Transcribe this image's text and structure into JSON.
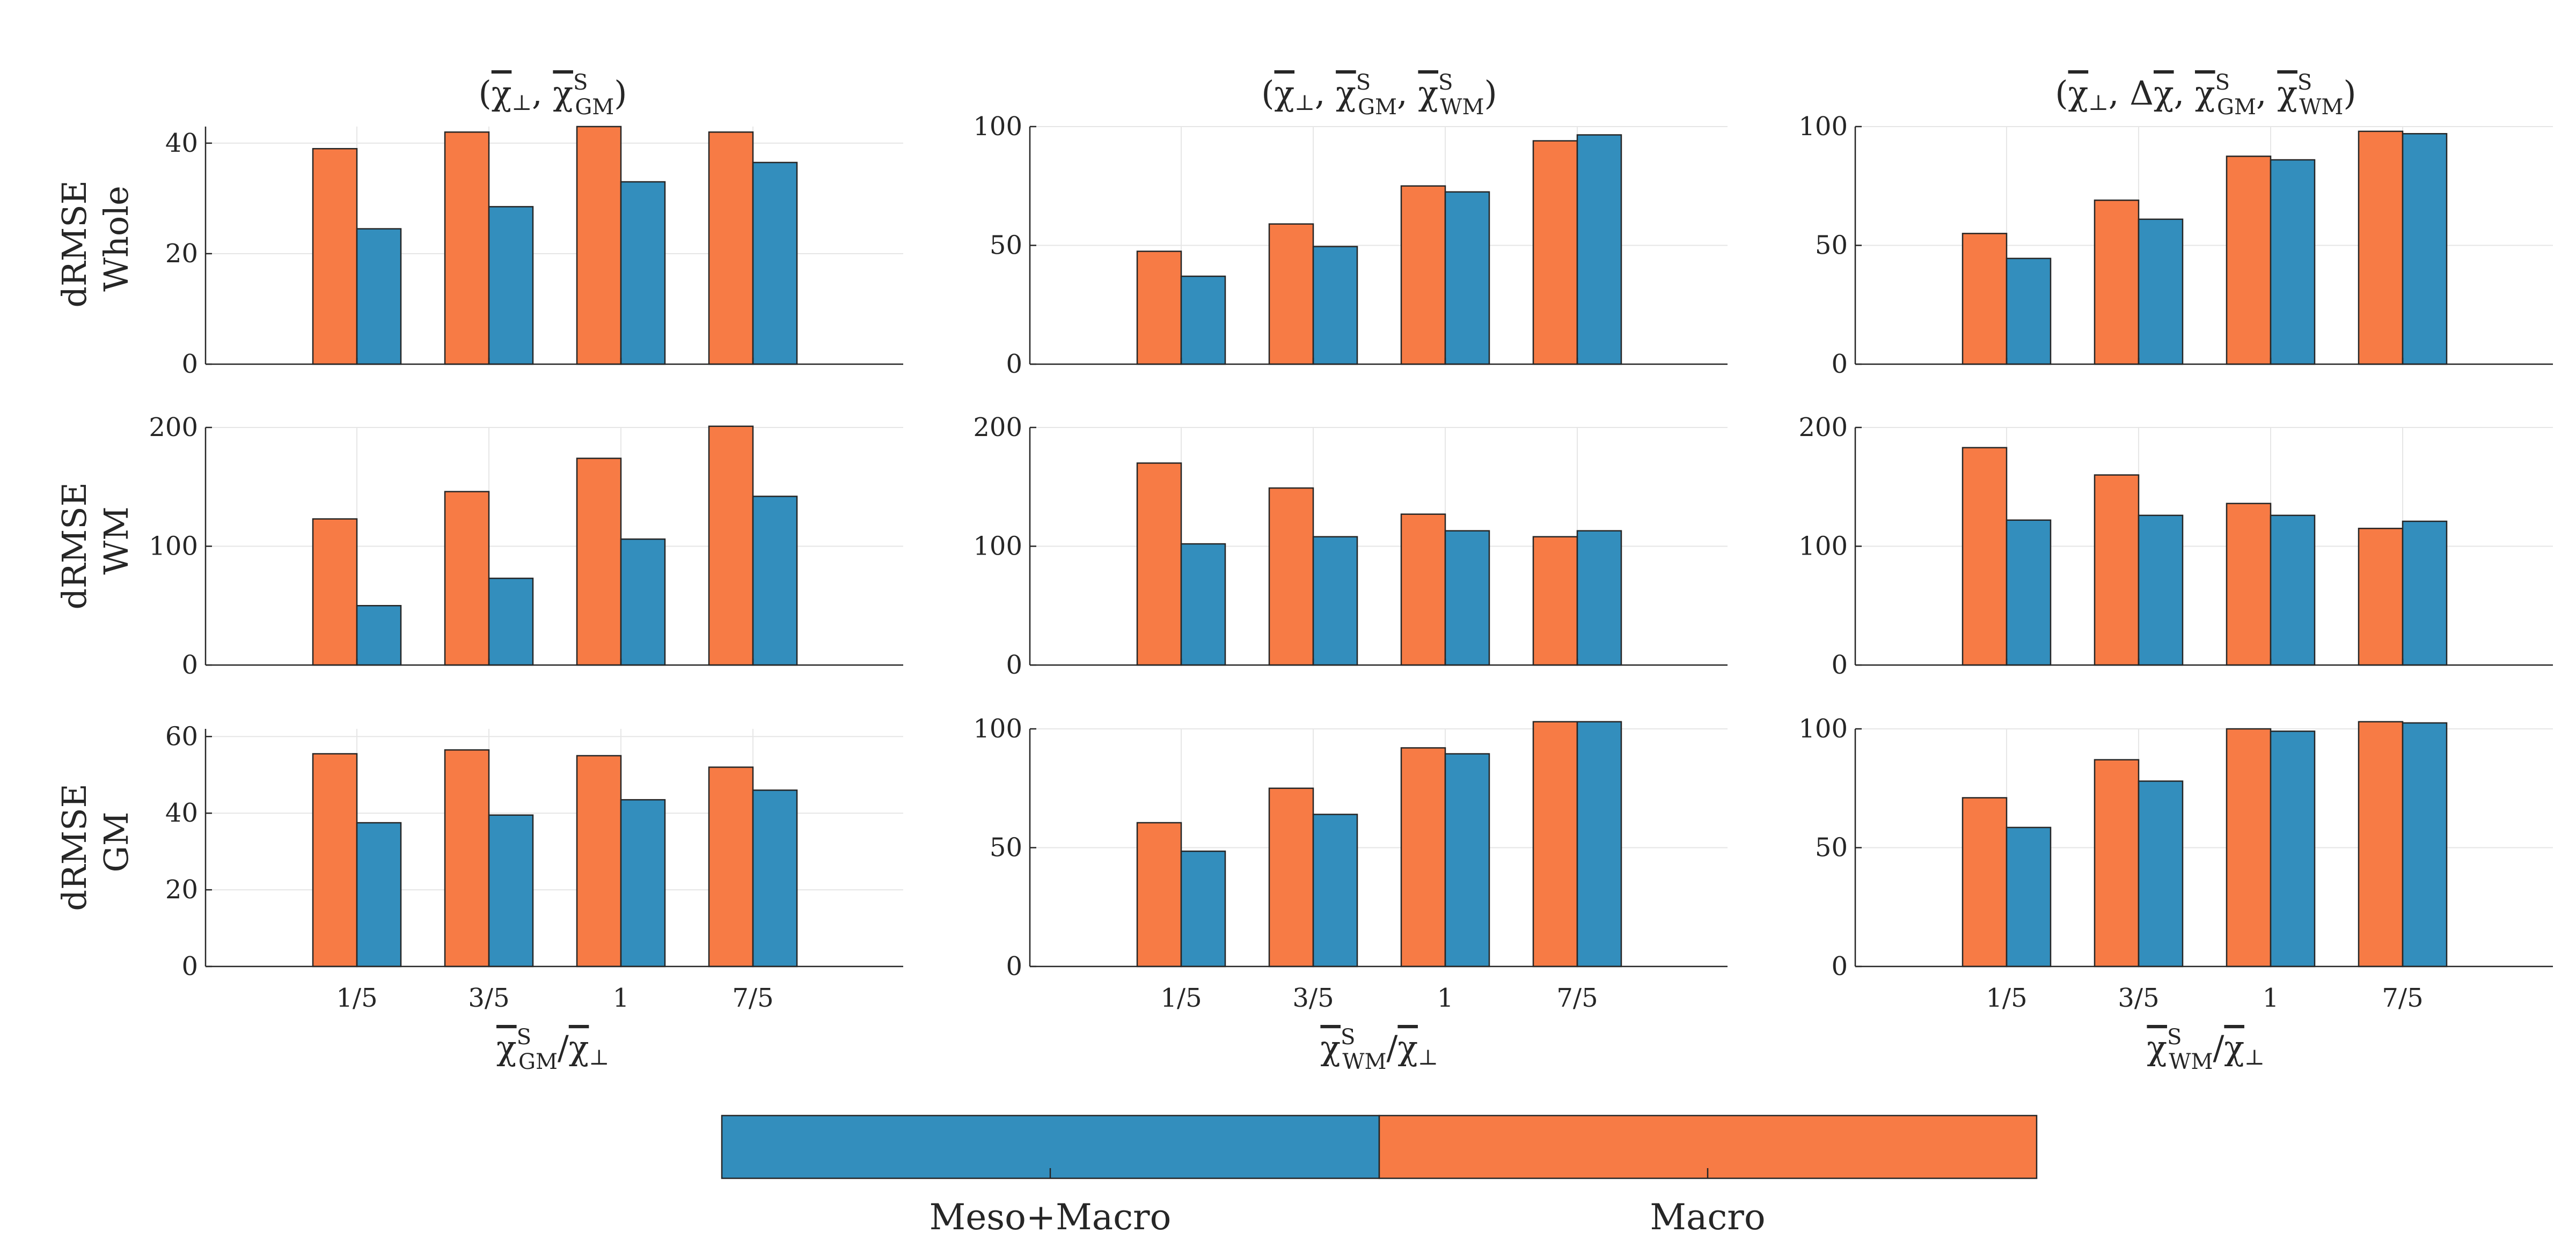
{
  "colors": {
    "macro": "#F77B45",
    "meso_macro": "#338EBD"
  },
  "chart_data": {
    "type": "bar",
    "categories": [
      "1/5",
      "3/5",
      "1",
      "7/5"
    ],
    "legend": [
      "Meso+Macro",
      "Macro"
    ],
    "row_labels": [
      {
        "line1": "dRMSE",
        "line2": "Whole"
      },
      {
        "line1": "dRMSE",
        "line2": "WM"
      },
      {
        "line1": "dRMSE",
        "line2": "GM"
      }
    ],
    "column_titles": [
      "(χ̄⊥, χ̄ˢGM)",
      "(χ̄⊥, χ̄ˢGM, χ̄ˢWM)",
      "(χ̄⊥, Δχ̄, χ̄ˢGM, χ̄ˢWM)"
    ],
    "xlabels": [
      "χ̄ˢGM/χ̄⊥",
      "χ̄ˢWM/χ̄⊥",
      "χ̄ˢWM/χ̄⊥"
    ],
    "panels": [
      {
        "row": 0,
        "col": 0,
        "ylim": [
          0,
          43
        ],
        "yticks": [
          0,
          20,
          40
        ],
        "ytick_labels": [
          "0",
          "20",
          "40"
        ],
        "series": [
          {
            "name": "Macro",
            "values": [
              39,
              42,
              43,
              42
            ]
          },
          {
            "name": "Meso+Macro",
            "values": [
              24.5,
              28.5,
              33,
              36.5
            ]
          }
        ]
      },
      {
        "row": 0,
        "col": 1,
        "ylim": [
          0,
          100
        ],
        "yticks": [
          0,
          50,
          100
        ],
        "ytick_labels": [
          "0",
          "50",
          "100"
        ],
        "series": [
          {
            "name": "Macro",
            "values": [
              47.5,
              59,
              75,
              94
            ]
          },
          {
            "name": "Meso+Macro",
            "values": [
              37,
              49.5,
              72.5,
              96.5
            ]
          }
        ]
      },
      {
        "row": 0,
        "col": 2,
        "ylim": [
          0,
          100
        ],
        "yticks": [
          0,
          50,
          100
        ],
        "ytick_labels": [
          "0",
          "50",
          "100"
        ],
        "series": [
          {
            "name": "Macro",
            "values": [
              55,
              69,
              87.5,
              98
            ]
          },
          {
            "name": "Meso+Macro",
            "values": [
              44.5,
              61,
              86,
              97
            ]
          }
        ]
      },
      {
        "row": 1,
        "col": 0,
        "ylim": [
          0,
          200
        ],
        "yticks": [
          0,
          100,
          200
        ],
        "ytick_labels": [
          "0",
          "100",
          "200"
        ],
        "series": [
          {
            "name": "Macro",
            "values": [
              123,
              146,
              174,
              201
            ]
          },
          {
            "name": "Meso+Macro",
            "values": [
              50,
              73,
              106,
              142
            ]
          }
        ]
      },
      {
        "row": 1,
        "col": 1,
        "ylim": [
          0,
          200
        ],
        "yticks": [
          0,
          100,
          200
        ],
        "ytick_labels": [
          "0",
          "100",
          "200"
        ],
        "series": [
          {
            "name": "Macro",
            "values": [
              170,
              149,
              127,
              108
            ]
          },
          {
            "name": "Meso+Macro",
            "values": [
              102,
              108,
              113,
              113
            ]
          }
        ]
      },
      {
        "row": 1,
        "col": 2,
        "ylim": [
          0,
          200
        ],
        "yticks": [
          0,
          100,
          200
        ],
        "ytick_labels": [
          "0",
          "100",
          "200"
        ],
        "series": [
          {
            "name": "Macro",
            "values": [
              183,
              160,
              136,
              115
            ]
          },
          {
            "name": "Meso+Macro",
            "values": [
              122,
              126,
              126,
              121
            ]
          }
        ]
      },
      {
        "row": 2,
        "col": 0,
        "ylim": [
          0,
          62
        ],
        "yticks": [
          0,
          20,
          40,
          60
        ],
        "ytick_labels": [
          "0",
          "20",
          "40",
          "60"
        ],
        "series": [
          {
            "name": "Macro",
            "values": [
              55.5,
              56.5,
              55,
              52
            ]
          },
          {
            "name": "Meso+Macro",
            "values": [
              37.5,
              39.5,
              43.5,
              46
            ]
          }
        ]
      },
      {
        "row": 2,
        "col": 1,
        "ylim": [
          0,
          100
        ],
        "yticks": [
          0,
          50,
          100
        ],
        "ytick_labels": [
          "0",
          "50",
          "100"
        ],
        "series": [
          {
            "name": "Macro",
            "values": [
              60.5,
              75,
              92,
              103
            ]
          },
          {
            "name": "Meso+Macro",
            "values": [
              48.5,
              64,
              89.5,
              103
            ]
          }
        ]
      },
      {
        "row": 2,
        "col": 2,
        "ylim": [
          0,
          100
        ],
        "yticks": [
          0,
          50,
          100
        ],
        "ytick_labels": [
          "0",
          "50",
          "100"
        ],
        "series": [
          {
            "name": "Macro",
            "values": [
              71,
              87,
              100,
              103
            ]
          },
          {
            "name": "Meso+Macro",
            "values": [
              58.5,
              78,
              99,
              102.5
            ]
          }
        ]
      }
    ]
  }
}
